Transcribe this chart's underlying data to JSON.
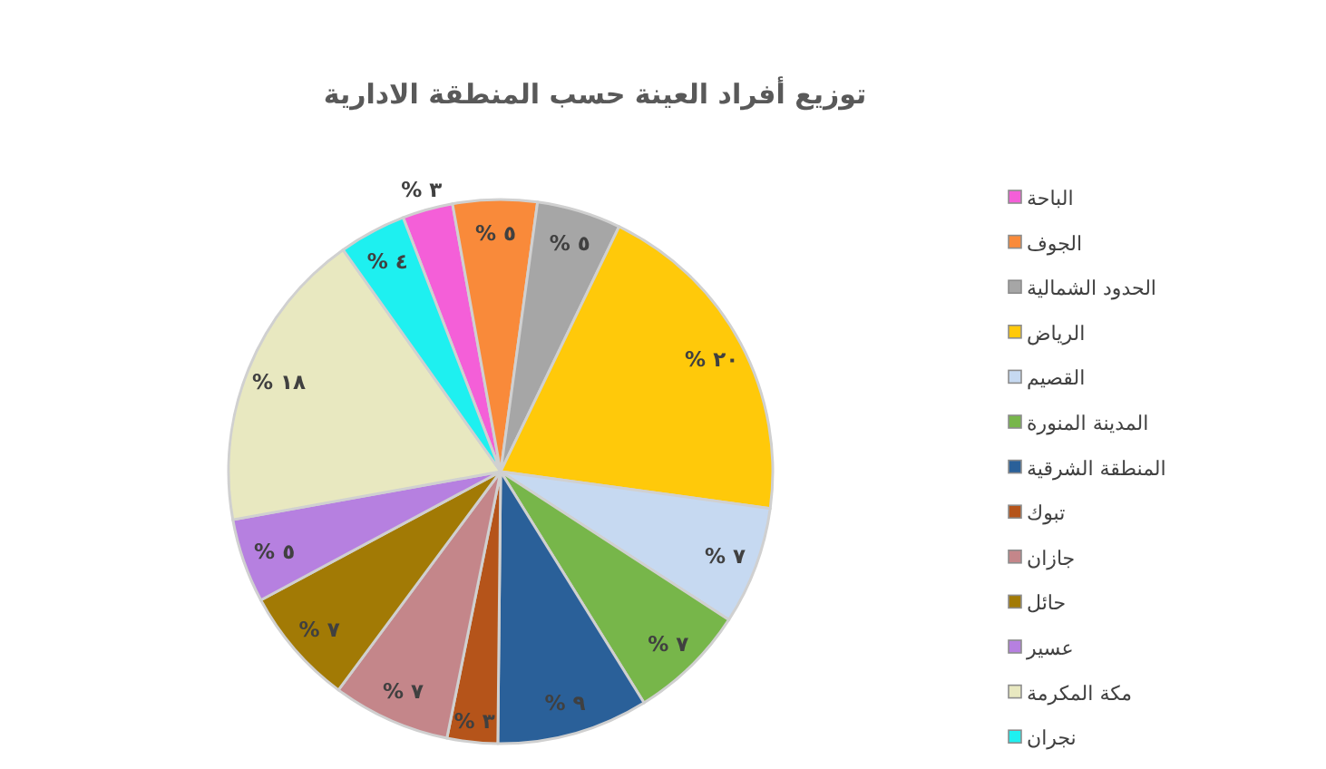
{
  "chart_data": {
    "type": "pie",
    "title": "توزيع أفراد العينة حسب المنطقة الادارية",
    "categories": [
      "الباحة",
      "الجوف",
      "الحدود الشمالية",
      "الرياض",
      "القصيم",
      "المدينة المنورة",
      "المنطقة الشرقية",
      "تبوك",
      "جازان",
      "حائل",
      "عسير",
      "مكة المكرمة",
      "نجران"
    ],
    "values": [
      3,
      5,
      5,
      20,
      7,
      7,
      9,
      3,
      7,
      7,
      5,
      18,
      4
    ],
    "colors": [
      "#f45fd8",
      "#f98a3a",
      "#a6a6a6",
      "#ffc90a",
      "#c6d9f1",
      "#77b64a",
      "#2a6099",
      "#b5541a",
      "#c4868a",
      "#a27a05",
      "#b680e0",
      "#e8e8c0",
      "#1ef0f0"
    ],
    "value_labels": [
      "% ٣",
      "% ٥",
      "% ٥",
      "% ٢٠",
      "% ٧",
      "% ٧",
      "% ٩",
      "% ٣",
      "% ٧",
      "% ٧",
      "% ٥",
      "% ١٨",
      "% ٤"
    ],
    "legend": "right"
  }
}
